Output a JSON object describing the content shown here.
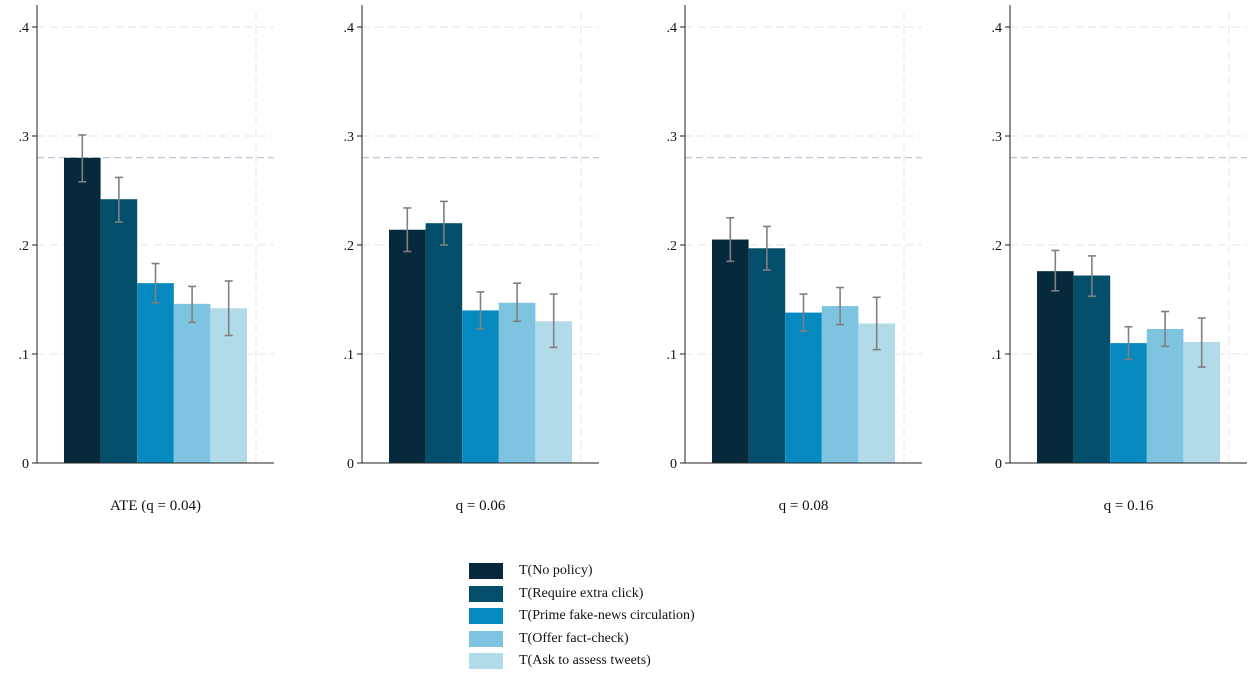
{
  "chart_data": {
    "type": "bar",
    "ylim": [
      0,
      0.4
    ],
    "yticks": [
      0,
      0.1,
      0.2,
      0.3,
      0.4
    ],
    "ytick_labels": [
      "0",
      ".1",
      ".2",
      ".3",
      ".4"
    ],
    "grid": true,
    "reference_line": 0.28,
    "legend_position": "bottom-center",
    "series_names": [
      "T(No policy)",
      "T(Require extra click)",
      "T(Prime fake-news circulation)",
      "T(Offer fact-check)",
      "T(Ask to assess tweets)"
    ],
    "colors": [
      "#062a3b",
      "#034e6b",
      "#0589bf",
      "#7ec3df",
      "#b2dbea"
    ],
    "panels": [
      {
        "label": "ATE (q = 0.04)",
        "values": [
          0.28,
          0.242,
          0.165,
          0.146,
          0.142
        ],
        "ci_low": [
          0.258,
          0.221,
          0.147,
          0.129,
          0.117
        ],
        "ci_high": [
          0.301,
          0.262,
          0.183,
          0.162,
          0.167
        ]
      },
      {
        "label": "q = 0.06",
        "values": [
          0.214,
          0.22,
          0.14,
          0.147,
          0.13
        ],
        "ci_low": [
          0.194,
          0.2,
          0.123,
          0.13,
          0.106
        ],
        "ci_high": [
          0.234,
          0.24,
          0.157,
          0.165,
          0.155
        ]
      },
      {
        "label": "q = 0.08",
        "values": [
          0.205,
          0.197,
          0.138,
          0.144,
          0.128
        ],
        "ci_low": [
          0.185,
          0.177,
          0.121,
          0.127,
          0.104
        ],
        "ci_high": [
          0.225,
          0.217,
          0.155,
          0.161,
          0.152
        ]
      },
      {
        "label": "q = 0.16",
        "values": [
          0.176,
          0.172,
          0.11,
          0.123,
          0.111
        ],
        "ci_low": [
          0.158,
          0.153,
          0.095,
          0.107,
          0.088
        ],
        "ci_high": [
          0.195,
          0.19,
          0.125,
          0.139,
          0.133
        ]
      }
    ]
  }
}
